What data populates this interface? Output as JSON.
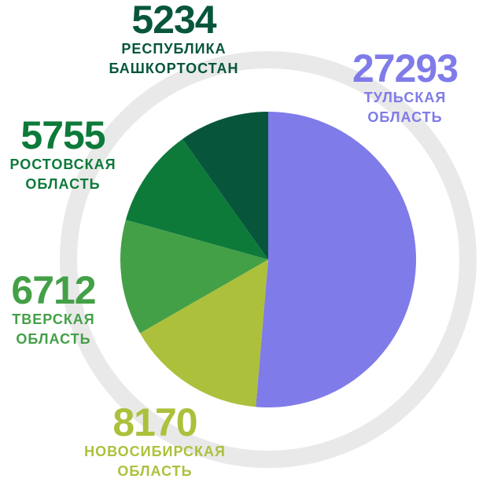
{
  "chart_data": {
    "type": "pie",
    "categories": [
      "ТУЛЬСКАЯ ОБЛАСТЬ",
      "НОВОСИБИРСКАЯ ОБЛАСТЬ",
      "ТВЕРСКАЯ ОБЛАСТЬ",
      "РОСТОВСКАЯ ОБЛАСТЬ",
      "РЕСПУБЛИКА БАШКОРТОСТАН"
    ],
    "values": [
      27293,
      8170,
      6712,
      5755,
      5234
    ],
    "colors": [
      "#7f7be9",
      "#adc03c",
      "#43a047",
      "#0d7a3a",
      "#07563b"
    ]
  }
}
